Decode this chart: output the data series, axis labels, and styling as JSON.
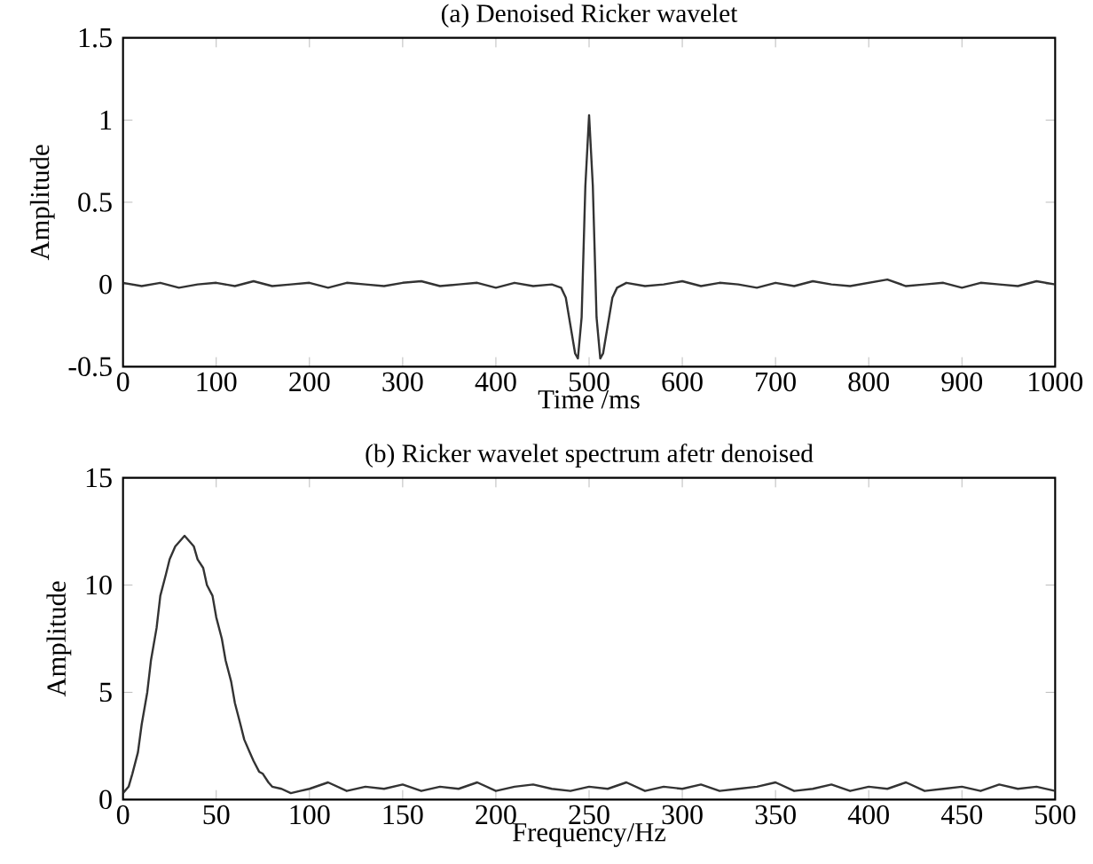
{
  "chart_data": [
    {
      "type": "line",
      "title": "(a) Denoised Ricker wavelet",
      "xlabel": "Time /ms",
      "ylabel": "Amplitude",
      "color": "#333333",
      "x": [
        0,
        20,
        40,
        60,
        80,
        100,
        120,
        140,
        160,
        180,
        200,
        220,
        240,
        260,
        280,
        300,
        320,
        340,
        360,
        380,
        400,
        420,
        440,
        460,
        470,
        475,
        480,
        485,
        488,
        492,
        496,
        500,
        504,
        508,
        512,
        515,
        520,
        525,
        530,
        540,
        560,
        580,
        600,
        620,
        640,
        660,
        680,
        700,
        720,
        740,
        760,
        780,
        800,
        820,
        840,
        860,
        880,
        900,
        920,
        940,
        960,
        980,
        1000
      ],
      "values": [
        0.01,
        -0.01,
        0.01,
        -0.02,
        0.0,
        0.01,
        -0.01,
        0.02,
        -0.01,
        0.0,
        0.01,
        -0.02,
        0.01,
        0.0,
        -0.01,
        0.01,
        0.02,
        -0.01,
        0.0,
        0.01,
        -0.02,
        0.01,
        -0.01,
        0.0,
        -0.02,
        -0.08,
        -0.25,
        -0.42,
        -0.45,
        -0.2,
        0.6,
        1.03,
        0.6,
        -0.2,
        -0.45,
        -0.42,
        -0.25,
        -0.08,
        -0.02,
        0.01,
        -0.01,
        0.0,
        0.02,
        -0.01,
        0.01,
        0.0,
        -0.02,
        0.01,
        -0.01,
        0.02,
        0.0,
        -0.01,
        0.01,
        0.03,
        -0.01,
        0.0,
        0.01,
        -0.02,
        0.01,
        0.0,
        -0.01,
        0.02,
        0.0
      ],
      "xlim": [
        0,
        1000
      ],
      "ylim": [
        -0.5,
        1.5
      ],
      "xticks": [
        0,
        100,
        200,
        300,
        400,
        500,
        600,
        700,
        800,
        900,
        1000
      ],
      "yticks": [
        -0.5,
        0,
        0.5,
        1,
        1.5
      ],
      "grid": false
    },
    {
      "type": "line",
      "title": "(b) Ricker wavelet spectrum afetr denoised",
      "xlabel": "Frequency/Hz",
      "ylabel": "Amplitude",
      "color": "#333333",
      "x": [
        0,
        3,
        5,
        8,
        10,
        13,
        15,
        18,
        20,
        23,
        25,
        28,
        30,
        33,
        35,
        38,
        40,
        43,
        45,
        48,
        50,
        53,
        55,
        58,
        60,
        63,
        65,
        68,
        70,
        73,
        75,
        78,
        80,
        85,
        90,
        95,
        100,
        110,
        120,
        130,
        140,
        150,
        160,
        170,
        180,
        190,
        200,
        210,
        220,
        230,
        240,
        250,
        260,
        270,
        280,
        290,
        300,
        310,
        320,
        330,
        340,
        350,
        360,
        370,
        380,
        390,
        400,
        410,
        420,
        430,
        440,
        450,
        460,
        470,
        480,
        490,
        500
      ],
      "values": [
        0.3,
        0.6,
        1.2,
        2.2,
        3.5,
        5,
        6.5,
        8,
        9.5,
        10.5,
        11.2,
        11.8,
        12,
        12.3,
        12.1,
        11.8,
        11.2,
        10.8,
        10,
        9.5,
        8.5,
        7.5,
        6.5,
        5.5,
        4.5,
        3.5,
        2.8,
        2.2,
        1.8,
        1.3,
        1.2,
        0.8,
        0.6,
        0.5,
        0.3,
        0.4,
        0.5,
        0.8,
        0.4,
        0.6,
        0.5,
        0.7,
        0.4,
        0.6,
        0.5,
        0.8,
        0.4,
        0.6,
        0.7,
        0.5,
        0.4,
        0.6,
        0.5,
        0.8,
        0.4,
        0.6,
        0.5,
        0.7,
        0.4,
        0.5,
        0.6,
        0.8,
        0.4,
        0.5,
        0.7,
        0.4,
        0.6,
        0.5,
        0.8,
        0.4,
        0.5,
        0.6,
        0.4,
        0.7,
        0.5,
        0.6,
        0.4
      ],
      "xlim": [
        0,
        500
      ],
      "ylim": [
        0,
        15
      ],
      "xticks": [
        0,
        50,
        100,
        150,
        200,
        250,
        300,
        350,
        400,
        450,
        500
      ],
      "yticks": [
        0,
        5,
        10,
        15
      ],
      "grid": false
    }
  ]
}
